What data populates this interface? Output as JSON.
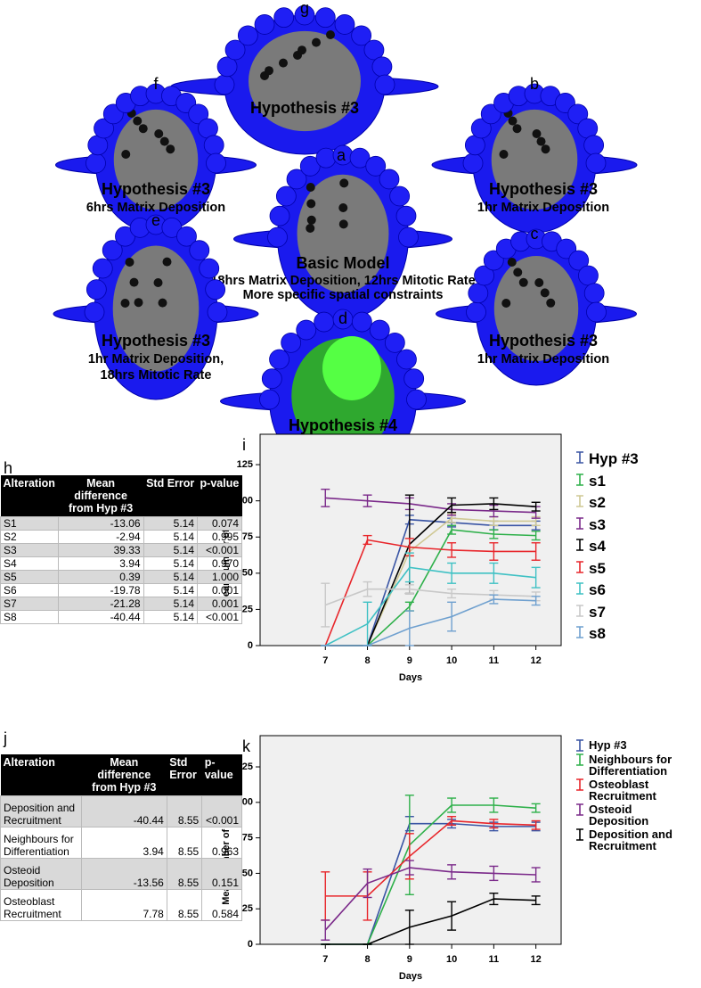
{
  "panels": [
    {
      "letter": "g",
      "lines": [
        "Hypothesis  #3"
      ]
    },
    {
      "letter": "f",
      "lines": [
        "Hypothesis #3",
        "6hrs Matrix Deposition"
      ]
    },
    {
      "letter": "b",
      "lines": [
        "Hypothesis #3",
        "1hr Matrix Deposition"
      ]
    },
    {
      "letter": "a",
      "lines": [
        "Basic Model",
        "18hrs Matrix Deposition, 12hrs Mitotic Rate",
        "More specific spatial constraints"
      ]
    },
    {
      "letter": "e",
      "lines": [
        "Hypothesis #3",
        "1hr Matrix Deposition,",
        "18hrs Mitotic Rate"
      ]
    },
    {
      "letter": "c",
      "lines": [
        "Hypothesis #3",
        "1hr Matrix Deposition"
      ]
    },
    {
      "letter": "d",
      "lines": [
        "Hypothesis  #4"
      ]
    }
  ],
  "tables": [
    {
      "letter": "h",
      "header": [
        "Alteration",
        "Mean difference from Hyp #3",
        "Std Error",
        "p-value"
      ],
      "rows": [
        [
          "S1",
          "-13.06",
          "5.14",
          "0.074"
        ],
        [
          "S2",
          "-2.94",
          "5.14",
          "0.995"
        ],
        [
          "S3",
          "39.33",
          "5.14",
          "<0.001"
        ],
        [
          "S4",
          "3.94",
          "5.14",
          "0.970"
        ],
        [
          "S5",
          "0.39",
          "5.14",
          "1.000"
        ],
        [
          "S6",
          "-19.78",
          "5.14",
          "0.001"
        ],
        [
          "S7",
          "-21.28",
          "5.14",
          "0.001"
        ],
        [
          "S8",
          "-40.44",
          "5.14",
          "<0.001"
        ]
      ]
    },
    {
      "letter": "j",
      "header": [
        "Alteration",
        "Mean difference from Hyp #3",
        "Std Error",
        "p-value"
      ],
      "rows": [
        [
          "Deposition and Recruitment",
          "-40.44",
          "8.55",
          "<0.001"
        ],
        [
          "Neighbours for Differentiation",
          "3.94",
          "8.55",
          "0.963"
        ],
        [
          "Osteoid Deposition",
          "-13.56",
          "8.55",
          "0.151"
        ],
        [
          "Osteoblast Recruitment",
          "7.78",
          "8.55",
          "0.584"
        ]
      ]
    }
  ],
  "chart_data": [
    {
      "type": "line",
      "letter": "i",
      "x_label": "Days",
      "y_label": "Mean number of osteocytes",
      "x": [
        7,
        8,
        9,
        10,
        11,
        12
      ],
      "xlim": [
        5.45,
        12.6
      ],
      "xticks": [
        7,
        8,
        9,
        10,
        11,
        12
      ],
      "ylim": [
        0,
        146
      ],
      "yticks": [
        0,
        25,
        50,
        75,
        100,
        125
      ],
      "series": [
        {
          "name": "Hyp #3",
          "color": "#3a55a4",
          "values": [
            0,
            0,
            87,
            85,
            83,
            83
          ],
          "errors": [
            0,
            0,
            3,
            3,
            3,
            3
          ]
        },
        {
          "name": "s1",
          "color": "#2eb04a",
          "values": [
            0,
            0,
            27,
            80,
            77,
            76
          ],
          "errors": [
            0,
            0,
            3,
            3,
            3,
            3
          ]
        },
        {
          "name": "s2",
          "color": "#cfc894",
          "values": [
            0,
            0,
            65,
            88,
            86,
            86
          ],
          "errors": [
            0,
            0,
            3,
            3,
            3,
            3
          ]
        },
        {
          "name": "s3",
          "color": "#7b2a8a",
          "values": [
            102,
            100,
            98,
            94,
            93,
            92
          ],
          "errors": [
            6,
            4,
            4,
            4,
            4,
            4
          ]
        },
        {
          "name": "s4",
          "color": "#000000",
          "values": [
            0,
            0,
            70,
            97,
            98,
            96
          ],
          "errors": [
            0,
            0,
            34,
            5,
            4,
            3
          ]
        },
        {
          "name": "s5",
          "color": "#e8262b",
          "values": [
            0,
            73,
            68,
            66,
            65,
            65
          ],
          "errors": [
            0,
            3,
            6,
            5,
            6,
            6
          ]
        },
        {
          "name": "s6",
          "color": "#3fc1c4",
          "values": [
            0,
            15,
            54,
            50,
            50,
            47
          ],
          "errors": [
            0,
            15,
            10,
            7,
            7,
            7
          ]
        },
        {
          "name": "s7",
          "color": "#c8c8c8",
          "values": [
            28,
            39,
            39,
            36,
            35,
            34
          ],
          "errors": [
            15,
            5,
            3,
            3,
            3,
            3
          ]
        },
        {
          "name": "s8",
          "color": "#6fa0cf",
          "values": [
            0,
            0,
            12,
            20,
            32,
            31
          ],
          "errors": [
            0,
            0,
            12,
            10,
            3,
            3
          ]
        }
      ]
    },
    {
      "type": "line",
      "letter": "k",
      "x_label": "Days",
      "y_label": "Mean number of osteocytes",
      "x": [
        7,
        8,
        9,
        10,
        11,
        12
      ],
      "xlim": [
        5.45,
        12.6
      ],
      "xticks": [
        7,
        8,
        9,
        10,
        11,
        12
      ],
      "ylim": [
        0,
        147
      ],
      "yticks": [
        0,
        25,
        50,
        75,
        100,
        125
      ],
      "series": [
        {
          "name": "Hyp #3",
          "color": "#3a55a4",
          "values": [
            0,
            0,
            85,
            85,
            83,
            83
          ],
          "errors": [
            0,
            0,
            5,
            3,
            3,
            3
          ]
        },
        {
          "name": "Neighbours for Differentiation",
          "color": "#2eb04a",
          "values": [
            0,
            0,
            70,
            98,
            98,
            96
          ],
          "errors": [
            0,
            0,
            35,
            5,
            5,
            3
          ]
        },
        {
          "name": "Osteoblast Recruitment",
          "color": "#e8262b",
          "values": [
            34,
            34,
            62,
            87,
            85,
            84
          ],
          "errors": [
            17,
            17,
            16,
            3,
            3,
            3
          ]
        },
        {
          "name": "Osteoid Deposition",
          "color": "#7b2a8a",
          "values": [
            10,
            43,
            54,
            51,
            50,
            49
          ],
          "errors": [
            7,
            10,
            5,
            5,
            5,
            5
          ]
        },
        {
          "name": "Deposition and Recruitment",
          "color": "#000000",
          "values": [
            0,
            0,
            12,
            20,
            32,
            31
          ],
          "errors": [
            0,
            0,
            12,
            10,
            4,
            3
          ]
        }
      ]
    }
  ]
}
